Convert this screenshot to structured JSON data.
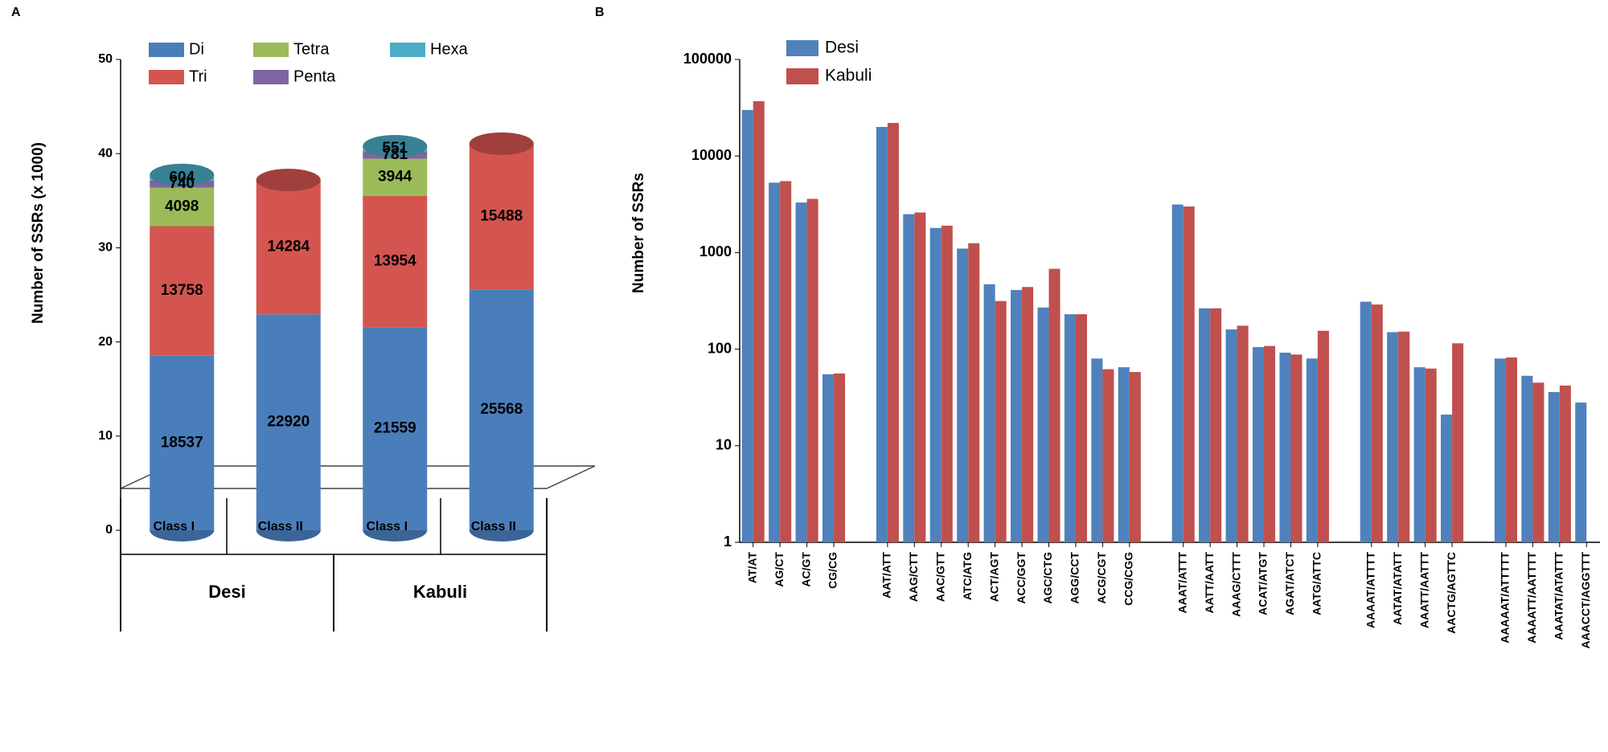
{
  "chart_data": [
    {
      "type": "bar",
      "stacked": true,
      "panel_label": "A",
      "ylabel": "Number of SSRs (x 1000)",
      "categories": [
        "Class I",
        "Class II",
        "Class I",
        "Class II"
      ],
      "groups": [
        "Desi",
        "Kabuli"
      ],
      "ylim": [
        0,
        50
      ],
      "yticks": [
        0,
        10,
        20,
        30,
        40,
        50
      ],
      "legend": "top",
      "series": [
        {
          "name": "Di",
          "color": "#4a7ebb",
          "values": [
            18.537,
            22.92,
            21.559,
            25.568
          ],
          "value_labels": [
            "18537",
            "22920",
            "21559",
            "25568"
          ]
        },
        {
          "name": "Tri",
          "color": "#d45550",
          "values": [
            13.758,
            14.284,
            13.954,
            15.488
          ],
          "value_labels": [
            "13758",
            "14284",
            "13954",
            "15488"
          ]
        },
        {
          "name": "Tetra",
          "color": "#9bbb59",
          "values": [
            4.098,
            null,
            3.944,
            null
          ],
          "value_labels": [
            "4098",
            null,
            "3944",
            null
          ]
        },
        {
          "name": "Penta",
          "color": "#8064a2",
          "values": [
            0.74,
            null,
            0.781,
            null
          ],
          "value_labels": [
            "740",
            null,
            "781",
            null
          ]
        },
        {
          "name": "Hexa",
          "color": "#4bacc6",
          "values": [
            0.604,
            null,
            0.551,
            null
          ],
          "value_labels": [
            "604",
            null,
            "551",
            null
          ]
        }
      ]
    },
    {
      "type": "bar",
      "stacked": false,
      "panel_label": "B",
      "log_scale": true,
      "ylabel": "Number of SSRs",
      "categories": [
        "AT/AT",
        "AG/CT",
        "AC/GT",
        "CG/CG",
        null,
        "AAT/ATT",
        "AAG/CTT",
        "AAC/GTT",
        "ATC/ATG",
        "ACT/AGT",
        "ACC/GGT",
        "AGC/CTG",
        "AGG/CCT",
        "ACG/CGT",
        "CCG/CGG",
        null,
        "AAAT/ATTT",
        "AATT/AATT",
        "AAAG/CTTT",
        "ACAT/ATGT",
        "AGAT/ATCT",
        "AATG/ATTC",
        null,
        "AAAAT/ATTTT",
        "AATAT/ATATT",
        "AAATT/AATTT",
        "AACTG/AGTTC",
        null,
        "AAAAAT/ATTTTT",
        "AAAATT/AATTTT",
        "AAATAT/ATATTT",
        "AAACCT/AGGTTT"
      ],
      "ylim": [
        1,
        100000
      ],
      "yticks": [
        1,
        10,
        100,
        1000,
        10000,
        100000
      ],
      "legend": "top left",
      "series": [
        {
          "name": "Desi",
          "color": "#4f81bd",
          "values": [
            30000,
            5300,
            3300,
            55,
            null,
            20000,
            2500,
            1800,
            1100,
            470,
            410,
            270,
            230,
            80,
            65,
            null,
            3150,
            265,
            160,
            105,
            92,
            80,
            null,
            310,
            150,
            65,
            21,
            null,
            80,
            53,
            36,
            28
          ]
        },
        {
          "name": "Kabuli",
          "color": "#c0504d",
          "values": [
            37000,
            5500,
            3600,
            56,
            null,
            22000,
            2600,
            1900,
            1250,
            315,
            440,
            680,
            230,
            62,
            58,
            null,
            3000,
            265,
            175,
            108,
            88,
            155,
            null,
            290,
            152,
            63,
            115,
            null,
            82,
            45,
            42,
            null
          ]
        }
      ]
    }
  ]
}
